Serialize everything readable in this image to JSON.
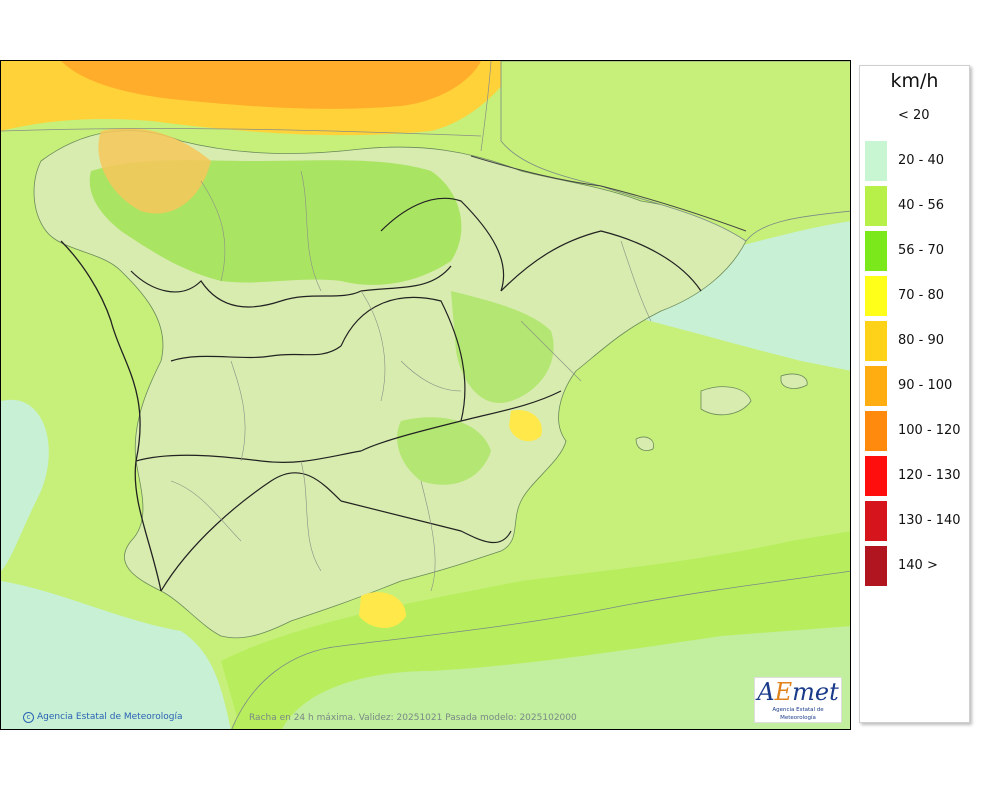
{
  "map": {
    "credit": "Agencia Estatal de Meteorología",
    "validity": "Racha en 24 h máxima. Validez: 20251021 Pasada modelo: 2025102000",
    "logo": {
      "word_a": "A",
      "word_e": "E",
      "word_rest": "met",
      "subtitle": "Agencia Estatal de Meteorología"
    }
  },
  "legend": {
    "unit": "km/h",
    "items": [
      {
        "label": "< 20",
        "color": "#ffffff"
      },
      {
        "label": "20 - 40",
        "color": "#c8f5d2"
      },
      {
        "label": "40 - 56",
        "color": "#b8f04a"
      },
      {
        "label": "56 - 70",
        "color": "#7be81c"
      },
      {
        "label": "70 - 80",
        "color": "#ffff1a"
      },
      {
        "label": "80 - 90",
        "color": "#ffd21a"
      },
      {
        "label": "90 - 100",
        "color": "#ffad10"
      },
      {
        "label": "100 - 120",
        "color": "#ff8a0e"
      },
      {
        "label": "120 - 130",
        "color": "#ff0e0e"
      },
      {
        "label": "130 - 140",
        "color": "#d5141b"
      },
      {
        "label": "140 >",
        "color": "#b01520"
      }
    ]
  }
}
